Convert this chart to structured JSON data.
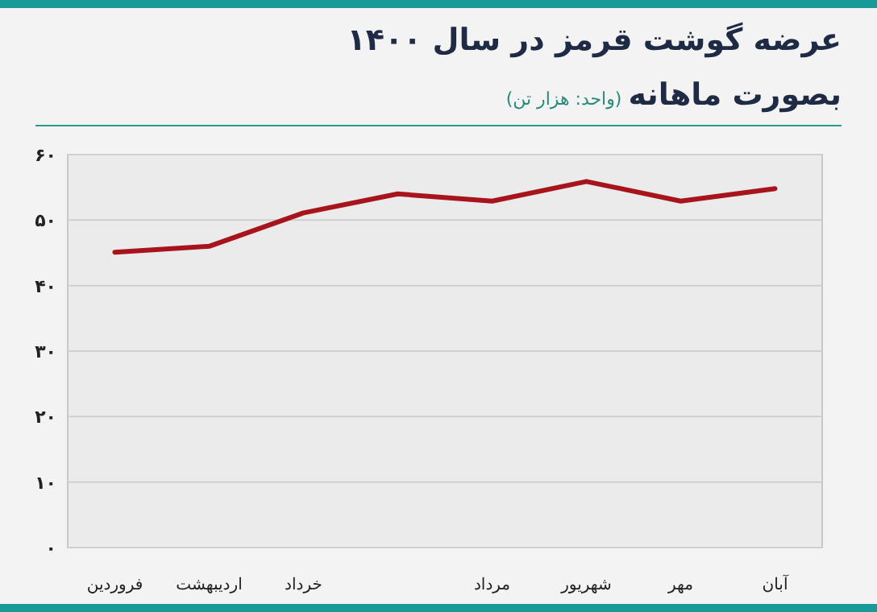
{
  "chart_data": {
    "type": "line",
    "title": "عرضه گوشت قرمز در سال ۱۴۰۰",
    "subtitle": "بصورت ماهانه",
    "annotations": [
      "(واحد: هزار تن)"
    ],
    "categories": [
      "فروردین",
      "اردیبهشت",
      "خرداد",
      null,
      "مرداد",
      "شهریور",
      "مهر",
      "آبان"
    ],
    "series": [
      {
        "color": "#a8141c",
        "values": [
          45.1,
          46.0,
          51.1,
          54.0,
          52.9,
          55.9,
          52.9,
          54.8
        ]
      }
    ],
    "ylim": [
      0,
      60
    ],
    "yticks": [
      {
        "value": 0,
        "label": "۰"
      },
      {
        "value": 10,
        "label": "۱۰"
      },
      {
        "value": 20,
        "label": "۲۰"
      },
      {
        "value": 30,
        "label": "۳۰"
      },
      {
        "value": 40,
        "label": "۴۰"
      },
      {
        "value": 50,
        "label": "۵۰"
      },
      {
        "value": 60,
        "label": "۶۰"
      }
    ],
    "grid": "y",
    "marker": "none",
    "line_style": "solid"
  }
}
